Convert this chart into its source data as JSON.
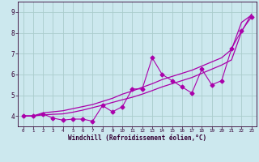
{
  "xlabel": "Windchill (Refroidissement éolien,°C)",
  "xlim": [
    -0.5,
    23.5
  ],
  "ylim": [
    3.5,
    9.5
  ],
  "yticks": [
    4,
    5,
    6,
    7,
    8,
    9
  ],
  "xticks": [
    0,
    1,
    2,
    3,
    4,
    5,
    6,
    7,
    8,
    9,
    10,
    11,
    12,
    13,
    14,
    15,
    16,
    17,
    18,
    19,
    20,
    21,
    22,
    23
  ],
  "bg_color": "#cce8ee",
  "grid_color": "#aacccc",
  "line_color": "#aa00aa",
  "line1_x": [
    0,
    1,
    2,
    3,
    4,
    5,
    6,
    7,
    8,
    9,
    10,
    11,
    12,
    13,
    14,
    15,
    16,
    17,
    18,
    19,
    20,
    21,
    22,
    23
  ],
  "line1_y": [
    4.0,
    4.0,
    4.1,
    3.9,
    3.8,
    3.85,
    3.85,
    3.75,
    4.5,
    4.2,
    4.45,
    5.3,
    5.3,
    6.8,
    6.0,
    5.7,
    5.4,
    5.1,
    6.25,
    5.5,
    5.7,
    7.25,
    8.1,
    8.75
  ],
  "line2_x": [
    0,
    1,
    2,
    3,
    4,
    5,
    6,
    7,
    8,
    9,
    10,
    11,
    12,
    13,
    14,
    15,
    16,
    17,
    18,
    19,
    20,
    21,
    22,
    23
  ],
  "line2_y": [
    4.0,
    4.0,
    4.15,
    4.2,
    4.25,
    4.35,
    4.45,
    4.55,
    4.7,
    4.85,
    5.05,
    5.2,
    5.38,
    5.55,
    5.75,
    5.9,
    6.05,
    6.2,
    6.4,
    6.6,
    6.8,
    7.2,
    8.5,
    8.85
  ],
  "line3_x": [
    0,
    1,
    2,
    3,
    4,
    5,
    6,
    7,
    8,
    9,
    10,
    11,
    12,
    13,
    14,
    15,
    16,
    17,
    18,
    19,
    20,
    21,
    22,
    23
  ],
  "line3_y": [
    4.0,
    4.0,
    4.05,
    4.08,
    4.1,
    4.18,
    4.28,
    4.4,
    4.52,
    4.65,
    4.78,
    4.9,
    5.05,
    5.22,
    5.4,
    5.55,
    5.7,
    5.85,
    6.05,
    6.25,
    6.45,
    6.7,
    8.05,
    8.9
  ]
}
